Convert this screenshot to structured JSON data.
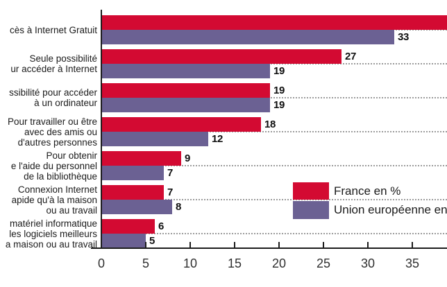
{
  "chart_data": {
    "type": "bar",
    "orientation": "horizontal",
    "categories": [
      {
        "lines": [
          "cès à Internet Gratuit"
        ]
      },
      {
        "lines": [
          "Seule possibilité",
          "ur accéder à Internet"
        ]
      },
      {
        "lines": [
          "ssibilité pour accéder",
          "à un ordinateur"
        ]
      },
      {
        "lines": [
          "Pour travailler ou être",
          "avec des amis ou",
          "d'autres personnes"
        ]
      },
      {
        "lines": [
          "Pour obtenir",
          "e l'aide du personnel",
          "de la bibliothèque"
        ]
      },
      {
        "lines": [
          "Connexion Internet",
          "apide qu'à la maison",
          "ou au travail"
        ]
      },
      {
        "lines": [
          "matériel informatique",
          "les logiciels meilleurs",
          "a maison ou au travail"
        ]
      }
    ],
    "series": [
      {
        "name": "France en %",
        "color": "#d30a32",
        "values": [
          40,
          27,
          19,
          18,
          9,
          7,
          6
        ],
        "value_labels": [
          "",
          "27",
          "19",
          "18",
          "9",
          "7",
          "6"
        ],
        "first_bar_clipped_at_right_edge": true
      },
      {
        "name": "Union européenne en",
        "color": "#6b6193",
        "values": [
          33,
          19,
          19,
          12,
          7,
          8,
          5
        ],
        "value_labels": [
          "33",
          "19",
          "19",
          "12",
          "7",
          "8",
          "5"
        ]
      }
    ],
    "x_ticks": [
      "0",
      "5",
      "10",
      "15",
      "20",
      "25",
      "30",
      "35"
    ],
    "x_tick_step": 5,
    "xlim": [
      0,
      38.9
    ],
    "grid": "dotted horizontal line at each group red/purple boundary extending to right edge",
    "legend_position": "bottom-right",
    "axis_color": "#1c1c1c",
    "gridline_color": "#9b9b9b"
  }
}
